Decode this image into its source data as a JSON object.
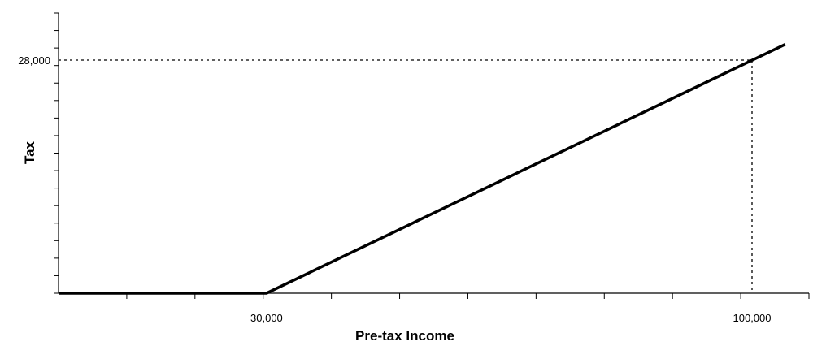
{
  "chart_data": {
    "type": "line",
    "title": "",
    "xlabel": "Pre-tax Income",
    "ylabel": "Tax",
    "xlim": [
      0,
      105000
    ],
    "ylim": [
      0,
      40000
    ],
    "x_tick_labels": [
      {
        "value": 30000,
        "label": "30,000"
      },
      {
        "value": 100000,
        "label": "100,000"
      }
    ],
    "y_tick_labels": [
      {
        "value": 28000,
        "label": "28,000"
      }
    ],
    "x_minor_tick_count": 11,
    "y_minor_tick_count": 16,
    "series": [
      {
        "x": [
          0,
          30000,
          104800
        ],
        "y": [
          0,
          0,
          29900
        ]
      }
    ],
    "reference_point": {
      "x": 100000,
      "y": 28000,
      "style": "dotted"
    },
    "grid": false,
    "legend": "none",
    "colors": {
      "line": "#000000",
      "axis": "#000000"
    }
  }
}
